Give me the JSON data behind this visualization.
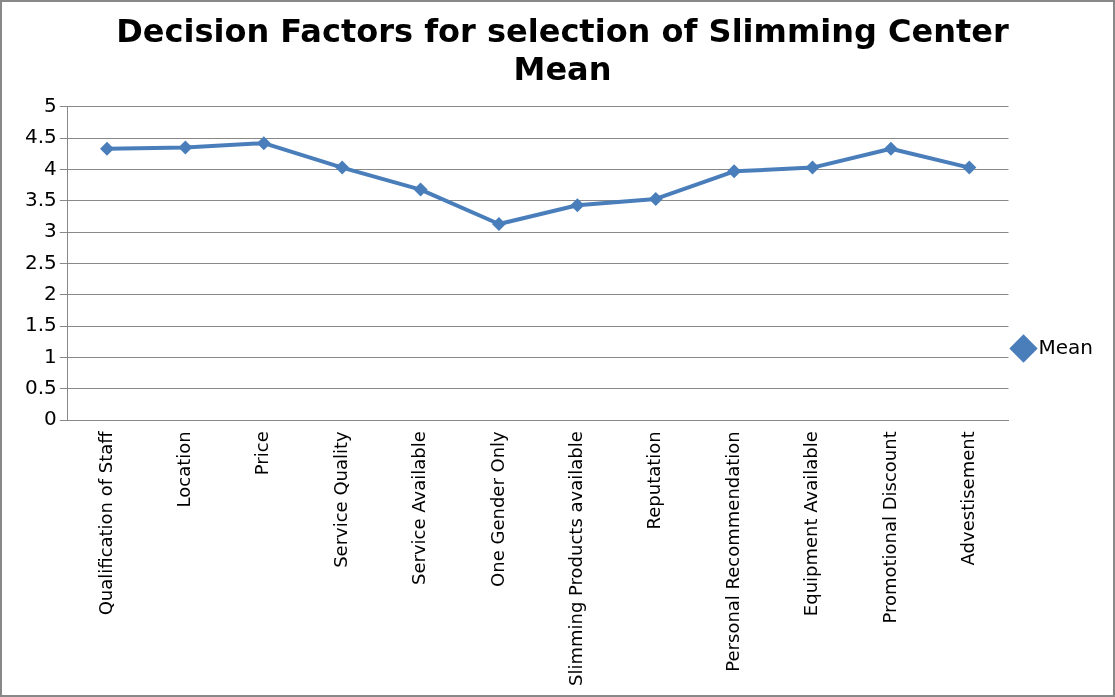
{
  "chart_data": {
    "type": "line",
    "title": "Decision Factors for selection of Slimming Center Mean",
    "categories": [
      "Qualification of Staff",
      "Location",
      "Price",
      "Service Quality",
      "Service Available",
      "One Gender Only",
      "Slimming Products available",
      "Reputation",
      "Personal Recommendation",
      "Equipment Available",
      "Promotional Discount",
      "Advestisement"
    ],
    "series": [
      {
        "name": "Mean",
        "color": "#4a7ebb",
        "values": [
          4.33,
          4.35,
          4.42,
          4.03,
          3.68,
          3.13,
          3.43,
          3.53,
          3.97,
          4.03,
          4.33,
          4.03
        ]
      }
    ],
    "ylim": [
      0,
      5
    ],
    "yticks": [
      0,
      0.5,
      1,
      1.5,
      2,
      2.5,
      3,
      3.5,
      4,
      4.5,
      5
    ],
    "grid": "y",
    "legend": "right",
    "marker": "diamond",
    "line_style": "solid"
  }
}
